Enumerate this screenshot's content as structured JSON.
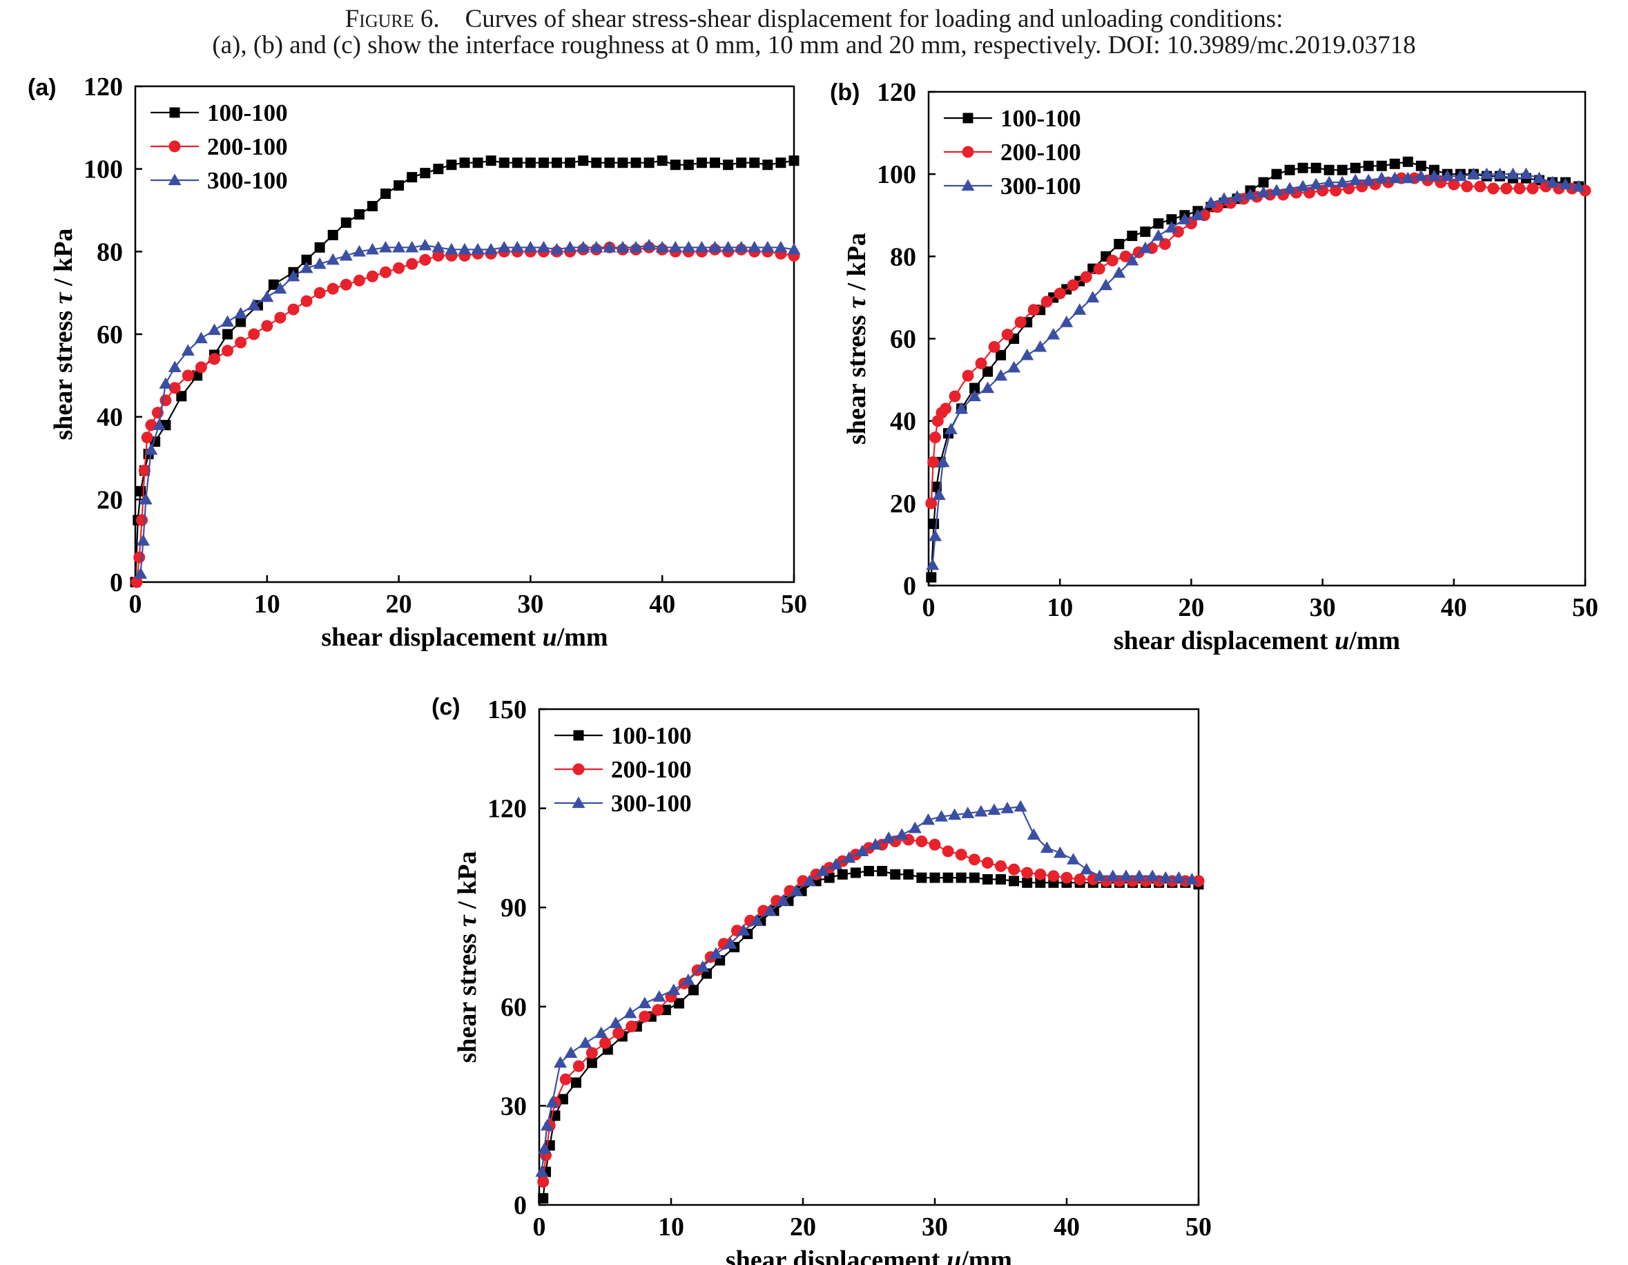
{
  "caption": {
    "line1_label": "Figure 6.",
    "line1_text": "Curves of shear stress-shear displacement for loading and unloading conditions:",
    "line2_text": "(a), (b) and (c) show the interface roughness at 0 mm, 10 mm and 20 mm, respectively.  DOI: 10.3989/mc.2019.03718"
  },
  "colors": {
    "s100": "#000000",
    "s200": "#e8212b",
    "s300": "#3a4fa3"
  },
  "chart_data": [
    {
      "panel": "(a)",
      "type": "line",
      "xlabel": "shear displacement  u/mm",
      "ylabel": "shear stress  τ / kPa",
      "xlim": [
        0,
        50
      ],
      "ylim": [
        0,
        120
      ],
      "xticks": [
        0,
        10,
        20,
        30,
        40,
        50
      ],
      "yticks": [
        0,
        20,
        40,
        60,
        80,
        100,
        120
      ],
      "legend_position": "top-left",
      "series": [
        {
          "name": "100-100",
          "marker": "square",
          "x": [
            0,
            0.2,
            0.4,
            0.7,
            1,
            1.5,
            2.3,
            3.5,
            4.7,
            6,
            7,
            8,
            9.3,
            10.5,
            12,
            13,
            14,
            15,
            16,
            17,
            18,
            19,
            20,
            21,
            22,
            23,
            24,
            25,
            26,
            27,
            28,
            29,
            30,
            31,
            32,
            33,
            34,
            35,
            36,
            37,
            38,
            39,
            40,
            41,
            42,
            43,
            44,
            45,
            46,
            47,
            48,
            49,
            50
          ],
          "y": [
            0,
            15,
            22,
            27,
            31,
            34,
            38,
            45,
            50,
            55,
            60,
            63,
            67,
            72,
            75,
            78,
            81,
            84,
            87,
            89,
            91,
            94,
            96,
            98,
            99,
            100,
            101,
            101.5,
            101.5,
            102,
            101.5,
            101.5,
            101.5,
            101.5,
            101.5,
            101.5,
            102,
            101.5,
            101.5,
            101.5,
            101.5,
            101.5,
            102,
            101,
            101,
            101.5,
            101.5,
            101,
            101.5,
            101.5,
            101,
            101.5,
            102
          ]
        },
        {
          "name": "200-100",
          "marker": "circle",
          "x": [
            0.1,
            0.3,
            0.5,
            0.7,
            0.9,
            1.2,
            1.7,
            2.3,
            3,
            4,
            5,
            6,
            7,
            8,
            9,
            10,
            11,
            12,
            13,
            14,
            15,
            16,
            17,
            18,
            19,
            20,
            21,
            22,
            23,
            24,
            25,
            26,
            27,
            28,
            29,
            30,
            31,
            32,
            33,
            34,
            35,
            36,
            37,
            38,
            39,
            40,
            41,
            42,
            43,
            44,
            45,
            46,
            47,
            48,
            49,
            50
          ],
          "y": [
            0,
            6,
            15,
            27,
            35,
            38,
            41,
            44,
            47,
            50,
            52,
            54,
            56,
            58,
            60,
            62,
            64,
            66,
            68,
            70,
            71,
            72,
            73,
            74,
            75,
            76,
            77,
            78,
            79,
            79,
            79,
            79.5,
            79.5,
            80,
            80,
            80,
            80,
            80,
            80,
            80.5,
            80.5,
            81,
            80.5,
            80.5,
            81,
            80.5,
            80,
            80,
            80,
            80.5,
            80,
            80.5,
            80,
            80,
            79.5,
            79
          ]
        },
        {
          "name": "300-100",
          "marker": "triangle",
          "x": [
            0.4,
            0.6,
            0.8,
            1.2,
            1.8,
            2.3,
            3,
            4,
            5,
            6,
            7,
            8,
            9,
            10,
            11,
            12,
            13,
            14,
            15,
            16,
            17,
            18,
            19,
            20,
            21,
            22,
            23,
            24,
            25,
            26,
            27,
            28,
            29,
            30,
            31,
            32,
            33,
            34,
            35,
            36,
            37,
            38,
            39,
            40,
            41,
            42,
            43,
            44,
            45,
            46,
            47,
            48,
            49,
            50
          ],
          "y": [
            2,
            10,
            20,
            32,
            38,
            48,
            52,
            56,
            59,
            61,
            63,
            65,
            67,
            69,
            71,
            74,
            76,
            77,
            78,
            79,
            80,
            80.5,
            81,
            81,
            81,
            81.5,
            81,
            80.5,
            80.5,
            80.5,
            80.5,
            81,
            81,
            81,
            81,
            80.5,
            81,
            81,
            81,
            81,
            81,
            81,
            81.5,
            81,
            81,
            81,
            81,
            81,
            81,
            81,
            81,
            81,
            81,
            80.5
          ]
        }
      ]
    },
    {
      "panel": "(b)",
      "type": "line",
      "xlabel": "shear displacement u/mm",
      "ylabel": "shear stress  τ / kPa",
      "xlim": [
        0,
        50
      ],
      "ylim": [
        0,
        120
      ],
      "xticks": [
        0,
        10,
        20,
        30,
        40,
        50
      ],
      "yticks": [
        0,
        20,
        40,
        60,
        80,
        100,
        120
      ],
      "legend_position": "top-left",
      "series": [
        {
          "name": "100-100",
          "marker": "square",
          "x": [
            0.2,
            0.4,
            0.6,
            0.9,
            1.5,
            2.5,
            3.5,
            4.5,
            5.5,
            6.5,
            7.5,
            8.5,
            9.5,
            10.5,
            11.5,
            12.5,
            13.5,
            14.5,
            15.5,
            16.5,
            17.5,
            18.5,
            19.5,
            20.5,
            21.5,
            22.5,
            23.5,
            24.5,
            25.5,
            26.5,
            27.5,
            28.5,
            29.5,
            30.5,
            31.5,
            32.5,
            33.5,
            34.5,
            35.5,
            36.5,
            37.5,
            38.5,
            39.5,
            40.5,
            41.5,
            42.5,
            43.5,
            44.5,
            45.5,
            46.5,
            47.5,
            48.5,
            49.5
          ],
          "y": [
            2,
            15,
            24,
            30,
            37,
            43,
            48,
            52,
            56,
            60,
            64,
            67,
            70,
            72,
            74,
            77,
            80,
            83,
            85,
            86,
            88,
            89,
            90,
            91,
            92,
            93,
            94,
            96,
            98,
            100,
            101,
            101.5,
            101.5,
            101,
            101,
            101.5,
            102,
            102,
            102.5,
            103,
            102,
            101,
            100,
            100,
            100,
            99.5,
            99.5,
            99,
            99,
            98.5,
            98,
            98,
            97
          ]
        },
        {
          "name": "200-100",
          "marker": "circle",
          "x": [
            0.2,
            0.35,
            0.5,
            0.7,
            1,
            1.3,
            2,
            3,
            4,
            5,
            6,
            7,
            8,
            9,
            10,
            11,
            12,
            13,
            14,
            15,
            16,
            17,
            18,
            19,
            20,
            21,
            22,
            23,
            24,
            25,
            26,
            27,
            28,
            29,
            30,
            31,
            32,
            33,
            34,
            35,
            36,
            37,
            38,
            39,
            40,
            41,
            42,
            43,
            44,
            45,
            46,
            47,
            48,
            49,
            50
          ],
          "y": [
            20,
            30,
            36,
            40,
            42,
            43,
            46,
            51,
            54,
            58,
            61,
            64,
            67,
            69,
            71,
            73,
            75,
            77,
            79,
            80,
            81,
            82,
            83,
            86,
            88,
            90,
            92,
            93,
            94,
            94.5,
            95,
            95,
            95.5,
            95.5,
            96,
            96,
            96.5,
            97,
            97.5,
            98,
            99,
            99,
            98.5,
            98,
            97.5,
            97,
            97,
            96.5,
            96.5,
            96.5,
            96.5,
            97,
            96.5,
            96.5,
            96
          ]
        },
        {
          "name": "300-100",
          "marker": "triangle",
          "x": [
            0.3,
            0.5,
            0.8,
            1.1,
            1.7,
            2.5,
            3.5,
            4.5,
            5.5,
            6.5,
            7.5,
            8.5,
            9.5,
            10.5,
            11.5,
            12.5,
            13.5,
            14.5,
            15.5,
            16.5,
            17.5,
            18.5,
            19.5,
            20.5,
            21.5,
            22.5,
            23.5,
            24.5,
            25.5,
            26.5,
            27.5,
            28.5,
            29.5,
            30.5,
            31.5,
            32.5,
            33.5,
            34.5,
            35.5,
            36.5,
            37.5,
            38.5,
            39.5,
            40.5,
            41.5,
            42.5,
            43.5,
            44.5,
            45.5,
            46.5,
            47.5,
            48.5,
            49.5
          ],
          "y": [
            5,
            12,
            22,
            30,
            38,
            43,
            46,
            48,
            51,
            53,
            56,
            58,
            61,
            64,
            67,
            70,
            73,
            76,
            79,
            82,
            85,
            87,
            89,
            90,
            93,
            94,
            94.5,
            95,
            95.5,
            96,
            96.5,
            97,
            97.5,
            98,
            98,
            98.5,
            98.5,
            99,
            99,
            99,
            99.5,
            99.5,
            99.5,
            99.5,
            100,
            100,
            100,
            100,
            100,
            99,
            98,
            97.5,
            97
          ]
        }
      ]
    },
    {
      "panel": "(c)",
      "type": "line",
      "xlabel": "shear displacement u/mm",
      "ylabel": "shear stress  τ / kPa",
      "xlim": [
        0,
        50
      ],
      "ylim": [
        0,
        150
      ],
      "xticks": [
        0,
        10,
        20,
        30,
        40,
        50
      ],
      "yticks": [
        0,
        30,
        60,
        90,
        120,
        150
      ],
      "legend_position": "top-left",
      "series": [
        {
          "name": "100-100",
          "marker": "square",
          "x": [
            0.3,
            0.5,
            0.8,
            1.2,
            1.8,
            2.8,
            4,
            5.2,
            6.3,
            7.4,
            8.5,
            9.6,
            10.6,
            11.7,
            12.7,
            13.7,
            14.8,
            15.8,
            16.8,
            17.8,
            18.9,
            19.9,
            21,
            22,
            23,
            24,
            25,
            26,
            27,
            28,
            29,
            30,
            31,
            32,
            33,
            34,
            35,
            36,
            37,
            38,
            39,
            40,
            41,
            42,
            43,
            44,
            45,
            46,
            47,
            48,
            49,
            50
          ],
          "y": [
            2,
            10,
            18,
            27,
            32,
            37,
            43,
            47,
            51,
            54,
            57,
            59,
            61,
            65,
            70,
            74,
            78,
            82,
            86,
            89,
            92,
            95,
            98,
            99,
            100,
            100.5,
            101,
            101,
            100,
            100,
            99,
            99,
            99,
            99,
            99,
            98.5,
            98.5,
            98,
            97.5,
            97.5,
            97.5,
            97.5,
            97.5,
            97.5,
            97.5,
            97.5,
            97.5,
            97.5,
            97.5,
            97.5,
            97.5,
            97
          ]
        },
        {
          "name": "200-100",
          "marker": "circle",
          "x": [
            0.3,
            0.5,
            0.8,
            1.2,
            2,
            3,
            4,
            5,
            6,
            7,
            8,
            9,
            10,
            11,
            12,
            13,
            14,
            15,
            16,
            17,
            18,
            19,
            20,
            21,
            22,
            23,
            24,
            25,
            26,
            27,
            28,
            29,
            30,
            31,
            32,
            33,
            34,
            35,
            36,
            37,
            38,
            39,
            40,
            41,
            42,
            43,
            44,
            45,
            46,
            47,
            48,
            49,
            50
          ],
          "y": [
            7,
            15,
            24,
            31,
            38,
            42,
            46,
            49,
            52,
            54,
            57,
            59,
            63,
            67,
            71,
            75,
            79,
            83,
            86,
            89,
            92,
            95,
            98,
            100,
            102,
            104,
            106,
            108,
            109,
            110,
            110.5,
            110,
            109,
            107,
            106,
            104.5,
            103.5,
            102.5,
            101.5,
            100.5,
            100,
            99.5,
            99,
            98.5,
            98.5,
            98,
            98,
            98,
            98,
            98,
            98,
            98,
            98
          ]
        },
        {
          "name": "300-100",
          "marker": "triangle",
          "x": [
            0.2,
            0.4,
            0.6,
            1,
            1.6,
            2.4,
            3.5,
            4.7,
            5.8,
            6.9,
            8,
            9.1,
            10.2,
            11.3,
            12.4,
            13.4,
            14.5,
            15.5,
            16.5,
            17.5,
            18.5,
            19.5,
            20.5,
            21.5,
            22.5,
            23.5,
            24.5,
            25.5,
            26.5,
            27.5,
            28.5,
            29.5,
            30.5,
            31.5,
            32.5,
            33.5,
            34.5,
            35.5,
            36.5,
            37.5,
            38.5,
            39.5,
            40.5,
            41.5,
            42.5,
            43.5,
            44.5,
            45.5,
            46.5,
            47.5,
            48.5,
            49.5
          ],
          "y": [
            10,
            17,
            24,
            31,
            43,
            46,
            49,
            52,
            55,
            58,
            61,
            63,
            65,
            68,
            72,
            76,
            79,
            83,
            86,
            89,
            92,
            95,
            98,
            101,
            103,
            105,
            107,
            109,
            111,
            112,
            114,
            116.5,
            117.5,
            118,
            118.5,
            119,
            119.5,
            120,
            120.5,
            112,
            108,
            106.5,
            104.5,
            101.5,
            99.5,
            99.5,
            99.5,
            99.5,
            99.5,
            99,
            99,
            98.5
          ]
        }
      ]
    }
  ]
}
